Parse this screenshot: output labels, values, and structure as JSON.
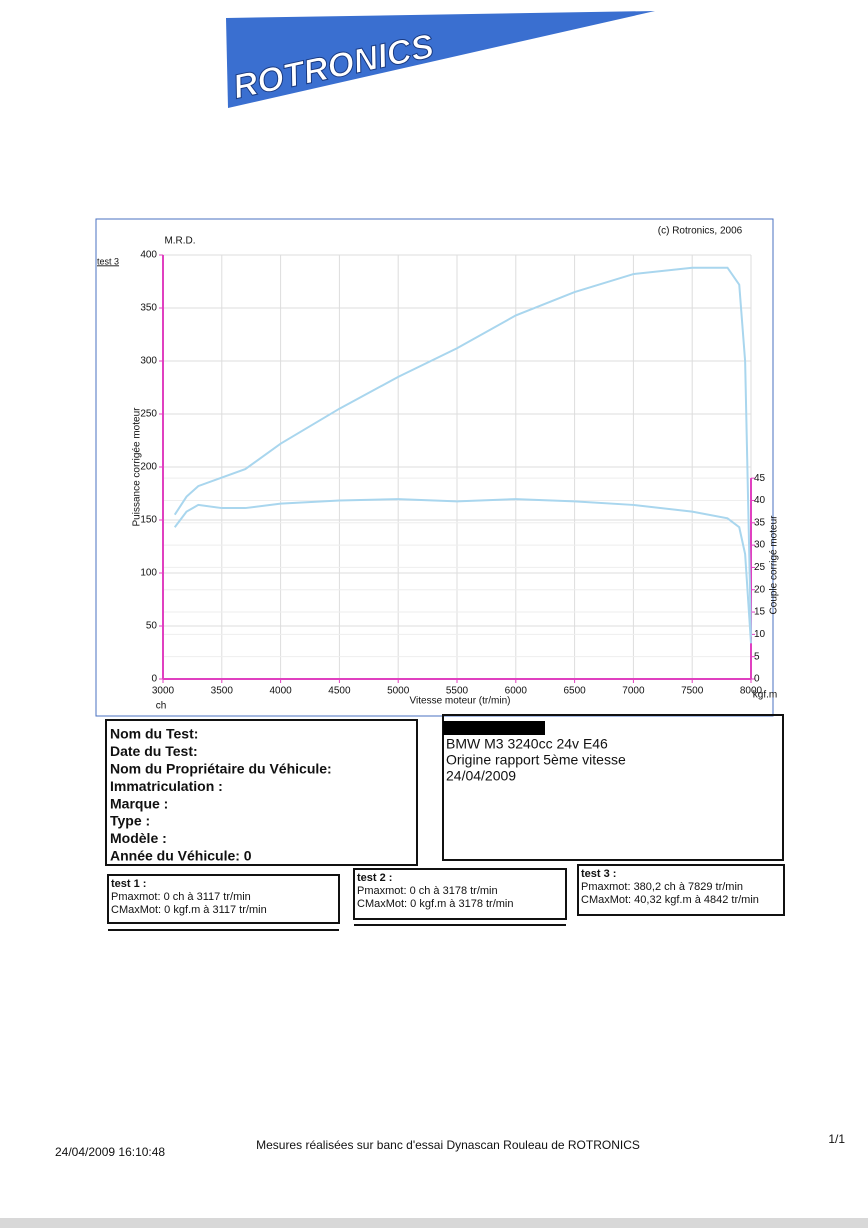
{
  "logo": "ROTRONICS",
  "chart_data": {
    "type": "line",
    "copyright": "(c) Rotronics, 2006",
    "test_label": "test 3",
    "header": "M.R.D.",
    "xlabel": "Vitesse moteur (tr/min)",
    "ylabel": "Puissance corrigée moteur",
    "y2label": "Couple corrigé moteur",
    "y_unit": "ch",
    "y2_unit": "kgf.m",
    "x": [
      3100,
      3200,
      3300,
      3500,
      3700,
      4000,
      4500,
      5000,
      5500,
      6000,
      6500,
      7000,
      7500,
      7800,
      7900,
      7950,
      8000
    ],
    "series": [
      {
        "name": "Puissance",
        "color": "#a9d6ee",
        "values": [
          155,
          172,
          182,
          190,
          198,
          222,
          255,
          285,
          312,
          343,
          365,
          382,
          388,
          388,
          372,
          300,
          40
        ]
      },
      {
        "name": "Couple",
        "color": "#a9d6ee",
        "axis": "y2",
        "values": [
          34,
          37.5,
          39,
          38.3,
          38.3,
          39.3,
          40,
          40.3,
          39.8,
          40.3,
          39.8,
          39,
          37.5,
          36,
          34,
          28,
          8
        ]
      }
    ],
    "xlim": [
      3000,
      8000
    ],
    "xticks": [
      3000,
      3500,
      4000,
      4500,
      5000,
      5500,
      6000,
      6500,
      7000,
      7500,
      8000
    ],
    "ylim": [
      0,
      400
    ],
    "yticks": [
      0,
      50,
      100,
      150,
      200,
      250,
      300,
      350,
      400
    ],
    "y2lim": [
      0,
      95
    ],
    "y2ticks": [
      0,
      5,
      10,
      15,
      20,
      25,
      30,
      35,
      40,
      45
    ],
    "grid": true,
    "axis_color": "#e040c0"
  },
  "form": {
    "labels": [
      "Nom du Test:",
      "Date du Test:",
      "Nom du Propriétaire du Véhicule:",
      "Immatriculation  :",
      "Marque  :",
      "Type  :",
      "Modèle  :",
      "Année du Véhicule: 0"
    ]
  },
  "vehicle": {
    "lines": [
      "BMW M3 3240cc 24v E46",
      "Origine rapport 5ème vitesse",
      "24/04/2009"
    ]
  },
  "tests": [
    {
      "title": "test 1 :",
      "lines": [
        "Pmaxmot: 0 ch à 3117 tr/min",
        "CMaxMot: 0 kgf.m à 3117 tr/min"
      ]
    },
    {
      "title": "test 2 :",
      "lines": [
        "Pmaxmot: 0 ch à 3178 tr/min",
        "CMaxMot: 0 kgf.m à 3178 tr/min"
      ]
    },
    {
      "title": "test 3 :",
      "lines": [
        "Pmaxmot: 380,2 ch à 7829 tr/min",
        "CMaxMot: 40,32 kgf.m à 4842 tr/min"
      ]
    }
  ],
  "footer": {
    "timestamp": "24/04/2009 16:10:48",
    "note": "Mesures réalisées sur banc d'essai Dynascan Rouleau de ROTRONICS",
    "page": "1/1"
  }
}
